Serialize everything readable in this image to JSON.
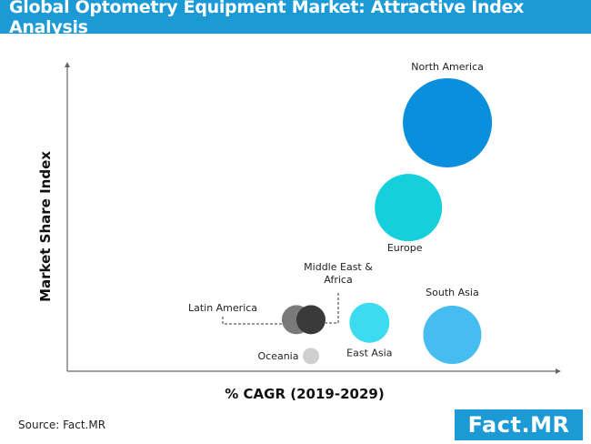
{
  "title": "Global Optometry Equipment Market: Attractive Index Analysis",
  "source": "Source: Fact.MR",
  "logo": "Fact.MR",
  "colors": {
    "title_bg": "#1b9ad6",
    "north_america": "#0a8fdc",
    "europe": "#15d0dc",
    "south_asia": "#47bcf0",
    "east_asia": "#3cdcf0",
    "middle_east_africa": "#3a3a3a",
    "latin_america": "#7a7a7a",
    "oceania": "#cfcfcf"
  },
  "chart_data": {
    "type": "scatter",
    "title": "Global Optometry Equipment Market: Attractive Index Analysis",
    "xlabel": "% CAGR (2019-2029)",
    "ylabel": "Market Share Index",
    "xlim": [
      0,
      100
    ],
    "ylim": [
      0,
      100
    ],
    "grid": false,
    "ticks_shown": false,
    "points": [
      {
        "name": "North America",
        "label": "North America",
        "x": 78,
        "y": 82,
        "size": 49,
        "color_key": "north_america"
      },
      {
        "name": "Europe",
        "label": "Europe",
        "x": 70,
        "y": 54,
        "size": 37,
        "color_key": "europe"
      },
      {
        "name": "South Asia",
        "label": "South Asia",
        "x": 79,
        "y": 12,
        "size": 32,
        "color_key": "south_asia"
      },
      {
        "name": "East Asia",
        "label": "East Asia",
        "x": 62,
        "y": 16,
        "size": 22,
        "color_key": "east_asia"
      },
      {
        "name": "Latin America",
        "label": "Latin America",
        "x": 47,
        "y": 17,
        "size": 16,
        "color_key": "latin_america"
      },
      {
        "name": "Middle East & Africa",
        "label": "Middle East &\nAfrica",
        "x": 50,
        "y": 17,
        "size": 16,
        "color_key": "middle_east_africa"
      },
      {
        "name": "Oceania",
        "label": "Oceania",
        "x": 50,
        "y": 5,
        "size": 9,
        "color_key": "oceania"
      }
    ]
  }
}
